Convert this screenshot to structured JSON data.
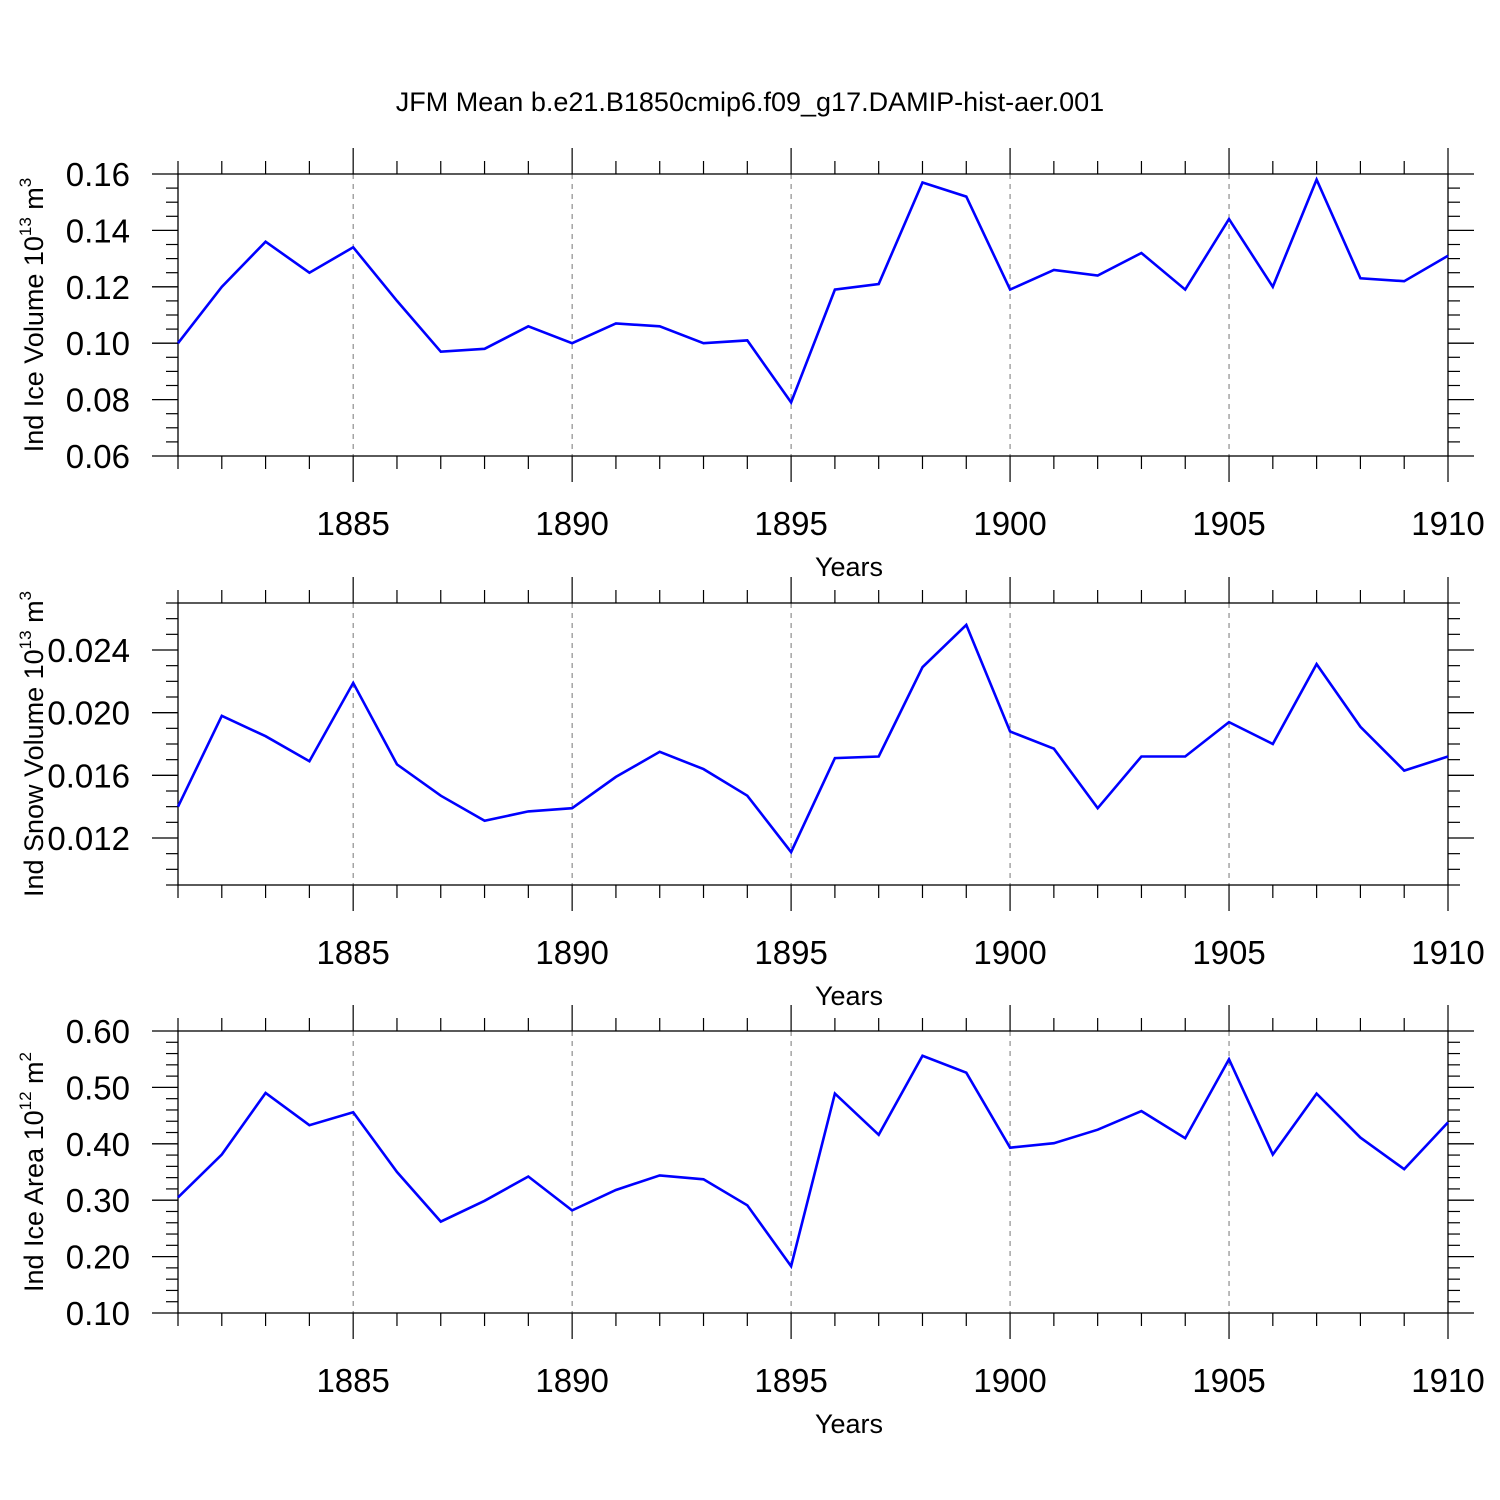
{
  "figure": {
    "title": "JFM Mean b.e21.B1850cmip6.f09_g17.DAMIP-hist-aer.001"
  },
  "chart_data": [
    {
      "type": "line",
      "xlabel": "Years",
      "ylabel": {
        "text": "Ind Ice Volume 10",
        "sup1": "13",
        "mid": " m",
        "sup2": "3"
      },
      "xlim": [
        1881,
        1910
      ],
      "ylim": [
        0.06,
        0.16
      ],
      "x_ticks": [
        1885,
        1890,
        1895,
        1900,
        1905,
        1910
      ],
      "x_tick_labels": [
        "1885",
        "1890",
        "1895",
        "1900",
        "1905",
        "1910"
      ],
      "y_ticks": [
        0.06,
        0.08,
        0.1,
        0.12,
        0.14,
        0.16
      ],
      "y_tick_labels": [
        "0.06",
        "0.08",
        "0.10",
        "0.12",
        "0.14",
        "0.16"
      ],
      "y_minor_step": 0.005,
      "grid": "dashed vertical at major x ticks",
      "line_color": "#0000ff",
      "x": [
        1881,
        1882,
        1883,
        1884,
        1885,
        1886,
        1887,
        1888,
        1889,
        1890,
        1891,
        1892,
        1893,
        1894,
        1895,
        1896,
        1897,
        1898,
        1899,
        1900,
        1901,
        1902,
        1903,
        1904,
        1905,
        1906,
        1907,
        1908,
        1909,
        1910
      ],
      "values": [
        0.1,
        0.12,
        0.136,
        0.125,
        0.134,
        0.115,
        0.097,
        0.098,
        0.106,
        0.1,
        0.107,
        0.106,
        0.1,
        0.101,
        0.079,
        0.119,
        0.121,
        0.157,
        0.152,
        0.119,
        0.126,
        0.124,
        0.132,
        0.119,
        0.144,
        0.12,
        0.158,
        0.123,
        0.122,
        0.131
      ]
    },
    {
      "type": "line",
      "xlabel": "Years",
      "ylabel": {
        "text": "Ind Snow Volume 10",
        "sup1": "13",
        "mid": " m",
        "sup2": "3"
      },
      "xlim": [
        1881,
        1910
      ],
      "ylim": [
        0.009,
        0.027
      ],
      "x_ticks": [
        1885,
        1890,
        1895,
        1900,
        1905,
        1910
      ],
      "x_tick_labels": [
        "1885",
        "1890",
        "1895",
        "1900",
        "1905",
        "1910"
      ],
      "y_ticks": [
        0.012,
        0.016,
        0.02,
        0.024
      ],
      "y_tick_labels": [
        "0.012",
        "0.016",
        "0.020",
        "0.024"
      ],
      "y_minor_step": 0.001,
      "grid": "dashed vertical at major x ticks",
      "line_color": "#0000ff",
      "x": [
        1881,
        1882,
        1883,
        1884,
        1885,
        1886,
        1887,
        1888,
        1889,
        1890,
        1891,
        1892,
        1893,
        1894,
        1895,
        1896,
        1897,
        1898,
        1899,
        1900,
        1901,
        1902,
        1903,
        1904,
        1905,
        1906,
        1907,
        1908,
        1909,
        1910
      ],
      "values": [
        0.014,
        0.0198,
        0.0185,
        0.0169,
        0.0219,
        0.0167,
        0.0147,
        0.0131,
        0.0137,
        0.0139,
        0.0159,
        0.0175,
        0.0164,
        0.0147,
        0.0111,
        0.0171,
        0.0172,
        0.0229,
        0.0256,
        0.0188,
        0.0177,
        0.0139,
        0.0172,
        0.0172,
        0.0194,
        0.018,
        0.0231,
        0.0191,
        0.0163,
        0.0172
      ]
    },
    {
      "type": "line",
      "xlabel": "Years",
      "ylabel": {
        "text": "Ind Ice Area 10",
        "sup1": "12",
        "mid": " m",
        "sup2": "2"
      },
      "xlim": [
        1881,
        1910
      ],
      "ylim": [
        0.1,
        0.6
      ],
      "x_ticks": [
        1885,
        1890,
        1895,
        1900,
        1905,
        1910
      ],
      "x_tick_labels": [
        "1885",
        "1890",
        "1895",
        "1900",
        "1905",
        "1910"
      ],
      "y_ticks": [
        0.1,
        0.2,
        0.3,
        0.4,
        0.5,
        0.6
      ],
      "y_tick_labels": [
        "0.10",
        "0.20",
        "0.30",
        "0.40",
        "0.50",
        "0.60"
      ],
      "y_minor_step": 0.02,
      "grid": "dashed vertical at major x ticks",
      "line_color": "#0000ff",
      "x": [
        1881,
        1882,
        1883,
        1884,
        1885,
        1886,
        1887,
        1888,
        1889,
        1890,
        1891,
        1892,
        1893,
        1894,
        1895,
        1896,
        1897,
        1898,
        1899,
        1900,
        1901,
        1902,
        1903,
        1904,
        1905,
        1906,
        1907,
        1908,
        1909,
        1910
      ],
      "values": [
        0.305,
        0.381,
        0.49,
        0.433,
        0.456,
        0.35,
        0.262,
        0.299,
        0.342,
        0.282,
        0.318,
        0.344,
        0.337,
        0.291,
        0.183,
        0.489,
        0.416,
        0.556,
        0.526,
        0.393,
        0.401,
        0.425,
        0.458,
        0.41,
        0.55,
        0.381,
        0.489,
        0.411,
        0.355,
        0.438
      ]
    }
  ]
}
